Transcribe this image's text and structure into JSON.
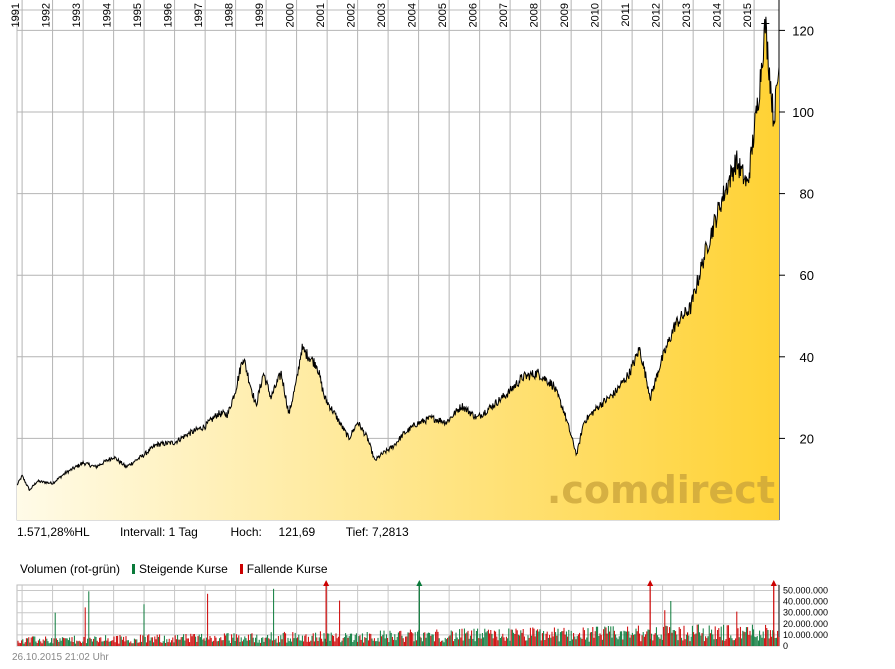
{
  "chart_data": [
    {
      "type": "area",
      "title": "",
      "x_axis": {
        "type": "date",
        "tick_labels": [
          "1991",
          "1992",
          "1993",
          "1994",
          "1995",
          "1996",
          "1997",
          "1998",
          "1999",
          "2000",
          "2001",
          "2002",
          "2003",
          "2004",
          "2005",
          "2006",
          "2007",
          "2008",
          "2009",
          "2010",
          "2011",
          "2012",
          "2013",
          "2014",
          "2015"
        ],
        "range": [
          "1990-11-01",
          "2015-10-26"
        ]
      },
      "y_axis": {
        "tick_labels": [
          "20",
          "40",
          "60",
          "80",
          "100",
          "120"
        ],
        "ylim": [
          0,
          125
        ],
        "position": "right"
      },
      "grid": true,
      "fill_gradient": [
        "#fffbe8",
        "#ffd234"
      ],
      "line_color": "#000000",
      "series": [
        {
          "x": [
            "1990-11-01",
            "1991-01-01",
            "1991-04-01",
            "1991-07-01",
            "1992-01-01",
            "1992-06-01",
            "1993-01-01",
            "1993-06-01",
            "1994-01-01",
            "1994-06-01",
            "1995-01-01",
            "1995-06-01",
            "1996-01-01",
            "1996-06-01",
            "1997-01-01",
            "1997-06-01",
            "1997-10-01",
            "1998-01-01",
            "1998-04-01",
            "1998-09-01",
            "1998-12-01",
            "1999-03-01",
            "1999-07-01",
            "1999-10-01",
            "2000-01-01",
            "2000-03-01",
            "2000-09-01",
            "2000-12-01",
            "2001-04-01",
            "2001-09-20",
            "2002-01-01",
            "2002-05-01",
            "2002-07-25",
            "2002-10-10",
            "2003-03-01",
            "2003-07-01",
            "2003-12-01",
            "2004-06-01",
            "2004-12-01",
            "2005-06-01",
            "2005-12-01",
            "2006-06-01",
            "2006-12-01",
            "2007-06-01",
            "2007-12-01",
            "2008-06-01",
            "2008-10-01",
            "2009-03-09",
            "2009-06-01",
            "2009-12-01",
            "2010-06-01",
            "2010-12-01",
            "2011-04-01",
            "2011-08-10",
            "2011-12-01",
            "2012-06-01",
            "2012-12-01",
            "2013-06-01",
            "2013-12-01",
            "2014-06-01",
            "2014-10-15",
            "2014-12-01",
            "2015-03-01",
            "2015-05-15",
            "2015-08-24",
            "2015-10-26"
          ],
          "y": [
            8.5,
            10.8,
            7.3,
            9.5,
            9.0,
            11.5,
            14.0,
            13.0,
            15.5,
            13.0,
            16.0,
            18.5,
            19.0,
            21.0,
            23.0,
            26.0,
            26.0,
            32.0,
            40.0,
            28.0,
            36.0,
            30.0,
            36.0,
            26.0,
            34.0,
            42.0,
            38.0,
            30.0,
            26.0,
            20.0,
            24.0,
            20.0,
            14.5,
            16.0,
            18.0,
            21.0,
            23.5,
            25.0,
            24.0,
            28.0,
            25.0,
            28.0,
            31.0,
            35.0,
            36.0,
            33.0,
            27.0,
            16.0,
            24.0,
            28.0,
            31.0,
            36.0,
            42.0,
            30.0,
            38.0,
            48.0,
            52.0,
            66.0,
            78.0,
            88.0,
            82.0,
            90.0,
            105.0,
            121.69,
            98.0,
            111.0
          ]
        }
      ]
    },
    {
      "type": "bar",
      "title": "",
      "y_axis": {
        "tick_labels": [
          "0",
          "10.000.000",
          "20.000.000",
          "30.000.000",
          "40.000.000",
          "50.000.000"
        ],
        "ylim": [
          0,
          55000000
        ],
        "position": "right"
      },
      "grid": true,
      "colors": {
        "up": "#0a7a3a",
        "down": "#cc0000"
      }
    }
  ],
  "watermark": ".comdirect",
  "stats": {
    "change": "1.571,28%HL",
    "interval": "Intervall: 1 Tag",
    "high_label": "Hoch:",
    "high_value": "121,69",
    "low_label": "Tief:",
    "low_value": "7,2813"
  },
  "volume_legend": {
    "title": "Volumen (rot-grün)",
    "rising": "Steigende Kurse",
    "falling": "Fallende Kurse",
    "rising_color": "#0a7a3a",
    "falling_color": "#cc0000"
  },
  "footer": "26.10.2015 21:02 Uhr"
}
